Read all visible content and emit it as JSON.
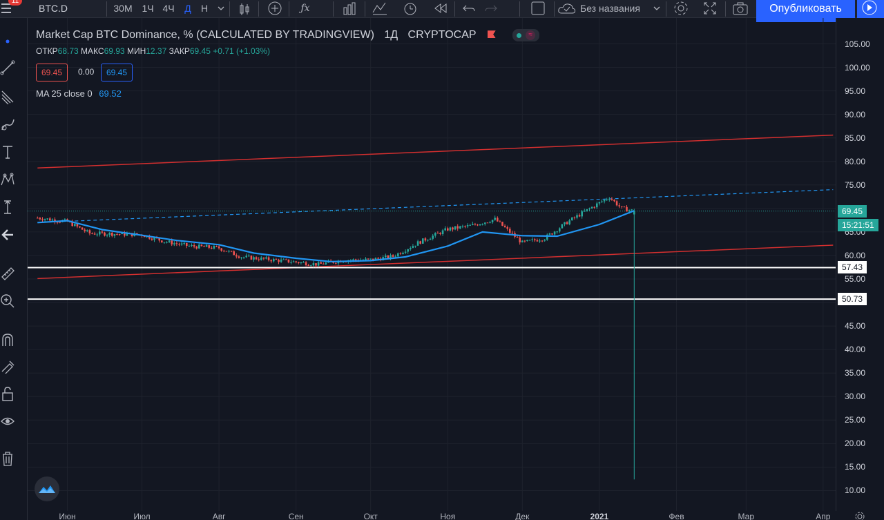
{
  "toolbar": {
    "notification_count": "11",
    "symbol": "BTC.D",
    "intervals": [
      "30М",
      "1Ч",
      "4Ч",
      "Д",
      "Н"
    ],
    "active_interval": "Д",
    "layout_name": "Без названия",
    "publish_label": "Опубликовать"
  },
  "legend": {
    "title": "Market Cap BTC Dominance, % (CALCULATED BY TRADINGVIEW)",
    "interval": "1Д",
    "exchange": "CRYPTOCAP",
    "open_label": "ОТКР",
    "open": "68.73",
    "high_label": "МАКС",
    "high": "69.93",
    "low_label": "МИН",
    "low": "12.37",
    "close_label": "ЗАКР",
    "close": "69.45",
    "change": "+0.71 (+1.03%)",
    "sell_price": "69.45",
    "spread": "0.00",
    "buy_price": "69.45",
    "ma_label": "MA 25 close 0",
    "ma_value": "69.52"
  },
  "price_axis": {
    "ticks": [
      "105.00",
      "100.00",
      "95.00",
      "90.00",
      "85.00",
      "80.00",
      "75.00",
      "70.00",
      "65.00",
      "60.00",
      "55.00",
      "50.00",
      "45.00",
      "40.00",
      "35.00",
      "30.00",
      "25.00",
      "20.00",
      "15.00",
      "10.00"
    ],
    "current_price": "69.45",
    "countdown": "15:21:51",
    "level_1": "57.43",
    "level_2": "50.73"
  },
  "time_axis": {
    "labels": [
      "Июн",
      "Июл",
      "Авг",
      "Сен",
      "Окт",
      "Ноя",
      "Дек",
      "2021",
      "Фев",
      "Мар",
      "Апр"
    ]
  },
  "colors": {
    "background": "#131722",
    "up": "#26a69a",
    "down": "#ef5350",
    "ma": "#2196f3",
    "channel": "#d32f2f",
    "accent": "#2962ff"
  },
  "chart_data": {
    "type": "candlestick",
    "symbol": "BTC.D",
    "ylim": [
      10,
      105
    ],
    "close_series": {
      "x": [
        "2020-05-20",
        "2020-06-01",
        "2020-06-10",
        "2020-06-20",
        "2020-07-01",
        "2020-07-10",
        "2020-07-20",
        "2020-08-01",
        "2020-08-10",
        "2020-08-20",
        "2020-09-01",
        "2020-09-10",
        "2020-09-20",
        "2020-10-01",
        "2020-10-10",
        "2020-10-20",
        "2020-11-01",
        "2020-11-10",
        "2020-11-20",
        "2020-12-01",
        "2020-12-10",
        "2020-12-20",
        "2021-01-01",
        "2021-01-05",
        "2021-01-10",
        "2021-01-15"
      ],
      "values": [
        68.0,
        67.2,
        64.7,
        64.6,
        64.4,
        63.0,
        62.0,
        61.6,
        59.7,
        59.2,
        58.6,
        58.1,
        59.0,
        59.1,
        59.8,
        62.7,
        65.6,
        66.3,
        67.7,
        62.7,
        63.7,
        67.4,
        71.2,
        72.4,
        70.0,
        69.45
      ]
    },
    "ma_25": {
      "x": [
        "2020-05-20",
        "2020-06-01",
        "2020-06-15",
        "2020-07-01",
        "2020-07-15",
        "2020-08-01",
        "2020-08-15",
        "2020-09-01",
        "2020-09-15",
        "2020-10-01",
        "2020-10-15",
        "2020-11-01",
        "2020-11-15",
        "2020-12-01",
        "2020-12-15",
        "2021-01-01",
        "2021-01-15"
      ],
      "values": [
        67.0,
        67.4,
        65.5,
        64.3,
        63.2,
        62.3,
        60.5,
        59.4,
        58.7,
        58.9,
        59.7,
        62.0,
        65.0,
        64.2,
        64.1,
        66.6,
        69.52
      ]
    },
    "last_wick_low": 12.37,
    "horizontal_levels": [
      57.43,
      50.73
    ],
    "channel_lines": [
      {
        "from": [
          "2020-05-20",
          78.6
        ],
        "to": [
          "2021-04-05",
          85.6
        ]
      },
      {
        "from": [
          "2020-05-20",
          55.1
        ],
        "to": [
          "2021-04-05",
          62.2
        ]
      }
    ],
    "dashed_trendline": {
      "from": [
        "2020-05-20",
        67.0
      ],
      "to": [
        "2021-04-05",
        74.0
      ]
    },
    "x_ticks": [
      "Июн",
      "Июл",
      "Авг",
      "Сен",
      "Окт",
      "Ноя",
      "Дек",
      "2021",
      "Фев",
      "Мар",
      "Апр"
    ],
    "grid": true
  }
}
